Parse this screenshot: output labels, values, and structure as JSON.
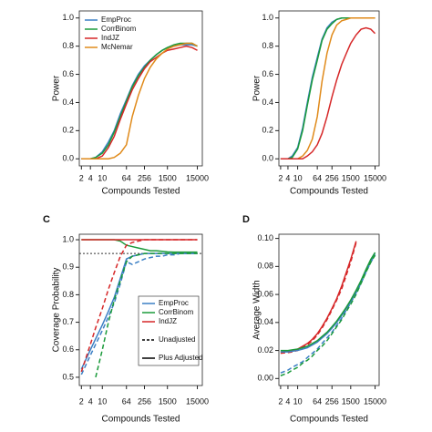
{
  "chart_data": [
    {
      "type": "line",
      "ylabel": "Power",
      "xlabel": "Compounds Tested",
      "log_x": true,
      "xlim": [
        1.7,
        22000
      ],
      "ylim": [
        -0.05,
        1.05
      ],
      "xticks": [
        2,
        4,
        10,
        64,
        256,
        1500,
        15000
      ],
      "yticks": [
        {
          "value": 0,
          "label": "0.0"
        },
        0.2,
        0.4,
        0.6,
        0.8,
        {
          "value": 1,
          "label": "1.0"
        }
      ],
      "x": [
        2,
        4,
        6,
        10,
        16,
        25,
        40,
        64,
        100,
        160,
        256,
        400,
        640,
        1000,
        1500,
        2500,
        4000,
        6400,
        10000,
        15000
      ],
      "legend_position": "top-left",
      "series": [
        {
          "name": "EmpProc",
          "color": "#3b7fc4",
          "values": [
            0,
            0,
            0.01,
            0.05,
            0.12,
            0.2,
            0.32,
            0.42,
            0.52,
            0.6,
            0.66,
            0.7,
            0.74,
            0.77,
            0.79,
            0.8,
            0.81,
            0.81,
            0.81,
            0.8
          ]
        },
        {
          "name": "CorrBinom",
          "color": "#1a9a3a",
          "values": [
            0,
            0,
            0.01,
            0.04,
            0.1,
            0.19,
            0.3,
            0.41,
            0.51,
            0.59,
            0.65,
            0.7,
            0.74,
            0.77,
            0.79,
            0.81,
            0.82,
            0.82,
            0.82,
            0.8
          ]
        },
        {
          "name": "IndJZ",
          "color": "#d62728",
          "values": [
            0,
            0,
            0,
            0.02,
            0.08,
            0.16,
            0.28,
            0.39,
            0.49,
            0.57,
            0.64,
            0.69,
            0.72,
            0.75,
            0.77,
            0.78,
            0.79,
            0.8,
            0.79,
            0.77
          ]
        },
        {
          "name": "McNemar",
          "color": "#e08a1a",
          "values": [
            0,
            0,
            0,
            0,
            0,
            0.01,
            0.04,
            0.1,
            0.3,
            0.45,
            0.57,
            0.65,
            0.71,
            0.75,
            0.78,
            0.8,
            0.81,
            0.82,
            0.82,
            0.8
          ]
        }
      ]
    },
    {
      "type": "line",
      "ylabel": "Power",
      "xlabel": "Compounds Tested",
      "log_x": true,
      "xlim": [
        1.7,
        22000
      ],
      "ylim": [
        -0.05,
        1.05
      ],
      "xticks": [
        2,
        4,
        10,
        64,
        256,
        1500,
        15000
      ],
      "yticks": [
        {
          "value": 0,
          "label": "0.0"
        },
        0.2,
        0.4,
        0.6,
        0.8,
        {
          "value": 1,
          "label": "1.0"
        }
      ],
      "x": [
        2,
        4,
        6,
        10,
        16,
        25,
        40,
        64,
        100,
        160,
        256,
        400,
        640,
        1000,
        1500,
        2500,
        4000,
        6400,
        10000,
        15000
      ],
      "series": [
        {
          "color": "#3b7fc4",
          "values": [
            0,
            0,
            0.02,
            0.08,
            0.22,
            0.4,
            0.58,
            0.72,
            0.85,
            0.93,
            0.97,
            0.99,
            1,
            1,
            1,
            1,
            1,
            1,
            1,
            1
          ]
        },
        {
          "color": "#1a9a3a",
          "values": [
            0,
            0,
            0.01,
            0.07,
            0.2,
            0.38,
            0.56,
            0.7,
            0.84,
            0.92,
            0.96,
            0.99,
            1,
            1,
            1,
            1,
            1,
            1,
            1,
            1
          ]
        },
        {
          "color": "#e08a1a",
          "values": [
            0,
            0,
            0,
            0,
            0.02,
            0.06,
            0.14,
            0.3,
            0.55,
            0.75,
            0.88,
            0.95,
            0.98,
            0.99,
            1,
            1,
            1,
            1,
            1,
            1
          ]
        },
        {
          "color": "#d62728",
          "values": [
            0,
            0,
            0,
            0,
            0,
            0.02,
            0.05,
            0.1,
            0.18,
            0.3,
            0.44,
            0.56,
            0.67,
            0.75,
            0.82,
            0.88,
            0.92,
            0.93,
            0.92,
            0.89
          ]
        }
      ]
    },
    {
      "type": "line",
      "panel": "C",
      "ylabel": "Coverage Probability",
      "xlabel": "Compounds Tested",
      "log_x": true,
      "xlim": [
        1.7,
        22000
      ],
      "ylim": [
        0.47,
        1.02
      ],
      "xticks": [
        2,
        4,
        10,
        64,
        256,
        1500,
        15000
      ],
      "yticks": [
        0.5,
        0.6,
        0.7,
        0.8,
        0.9,
        {
          "value": 1,
          "label": "1.0"
        }
      ],
      "hline": 0.95,
      "x": [
        2,
        4,
        6,
        10,
        16,
        25,
        40,
        64,
        100,
        160,
        256,
        400,
        640,
        1000,
        1500,
        2500,
        4000,
        6400,
        10000,
        15000
      ],
      "legend_position": "bottom-right",
      "legend": [
        {
          "label": "EmpProc",
          "color": "#3b7fc4"
        },
        {
          "label": "CorrBinom",
          "color": "#1a9a3a"
        },
        {
          "label": "IndJZ",
          "color": "#d62728"
        },
        {
          "label": "Unadjusted",
          "color": "#000000",
          "dashed": true
        },
        {
          "label": "Plus Adjusted",
          "color": "#000000"
        }
      ],
      "series": [
        {
          "color": "#3b7fc4",
          "values": [
            0.53,
            0.6,
            0.64,
            0.69,
            0.74,
            0.79,
            0.86,
            0.93,
            0.94,
            0.945,
            0.95,
            0.95,
            0.95,
            0.95,
            0.95,
            0.95,
            0.95,
            0.95,
            0.95,
            0.95
          ]
        },
        {
          "color": "#3b7fc4",
          "dashed": true,
          "values": [
            0.51,
            0.58,
            0.62,
            0.67,
            0.72,
            0.77,
            0.84,
            0.92,
            0.91,
            0.92,
            0.93,
            0.935,
            0.94,
            0.94,
            0.945,
            0.945,
            0.95,
            0.95,
            0.95,
            0.95
          ]
        },
        {
          "color": "#1a9a3a",
          "values": [
            1,
            1,
            1,
            1,
            1,
            1,
            0.995,
            0.98,
            0.975,
            0.97,
            0.965,
            0.96,
            0.96,
            0.958,
            0.956,
            0.955,
            0.955,
            0.955,
            0.955,
            0.955
          ]
        },
        {
          "color": "#1a9a3a",
          "dashed": true,
          "values": [
            null,
            null,
            0.5,
            0.6,
            0.7,
            0.78,
            0.85,
            0.92,
            0.94,
            0.945,
            0.95,
            0.95,
            0.95,
            0.95,
            0.95,
            0.95,
            0.95,
            0.95,
            0.95,
            0.95
          ]
        },
        {
          "color": "#d62728",
          "values": [
            1,
            1,
            1,
            1,
            1,
            1,
            1,
            1,
            1,
            1,
            1,
            1,
            1,
            1,
            1,
            1,
            1,
            1,
            1,
            1
          ]
        },
        {
          "color": "#d62728",
          "dashed": true,
          "values": [
            0.52,
            0.62,
            0.68,
            0.75,
            0.82,
            0.88,
            0.94,
            0.98,
            0.99,
            0.995,
            1,
            1,
            1,
            1,
            1,
            1,
            1,
            1,
            1,
            1
          ]
        }
      ]
    },
    {
      "type": "line",
      "panel": "D",
      "ylabel": "Average Width",
      "xlabel": "Compounds Tested",
      "log_x": true,
      "xlim": [
        1.7,
        22000
      ],
      "ylim": [
        -0.005,
        0.103
      ],
      "xticks": [
        2,
        4,
        10,
        64,
        256,
        1500,
        15000
      ],
      "yticks": [
        {
          "value": 0,
          "label": "0.00"
        },
        0.02,
        0.04,
        0.06,
        0.08,
        {
          "value": 0.1,
          "label": "0.10"
        }
      ],
      "x": [
        2,
        4,
        6,
        10,
        16,
        25,
        40,
        64,
        100,
        160,
        256,
        400,
        640,
        1000,
        1500,
        2500,
        4000,
        6400,
        10000,
        15000
      ],
      "series": [
        {
          "color": "#d62728",
          "values": [
            0.019,
            0.0195,
            0.02,
            0.021,
            0.023,
            0.025,
            0.028,
            0.032,
            0.037,
            0.043,
            0.05,
            0.057,
            0.066,
            0.076,
            0.085,
            0.098,
            null,
            null,
            null,
            null
          ]
        },
        {
          "color": "#d62728",
          "dashed": true,
          "values": [
            0.018,
            0.0185,
            0.019,
            0.02,
            0.022,
            0.024,
            0.027,
            0.031,
            0.036,
            0.042,
            0.049,
            0.056,
            0.064,
            0.074,
            0.083,
            0.097,
            null,
            null,
            null,
            null
          ]
        },
        {
          "color": "#3b7fc4",
          "values": [
            0.019,
            0.019,
            0.0195,
            0.02,
            0.021,
            0.022,
            0.024,
            0.026,
            0.029,
            0.032,
            0.036,
            0.04,
            0.045,
            0.05,
            0.055,
            0.062,
            0.069,
            0.077,
            0.084,
            0.089
          ]
        },
        {
          "color": "#1a9a3a",
          "values": [
            0.02,
            0.02,
            0.0205,
            0.021,
            0.022,
            0.023,
            0.025,
            0.027,
            0.03,
            0.033,
            0.037,
            0.041,
            0.046,
            0.051,
            0.056,
            0.063,
            0.07,
            0.078,
            0.085,
            0.09
          ]
        },
        {
          "color": "#3b7fc4",
          "dashed": true,
          "values": [
            0.004,
            0.006,
            0.008,
            0.01,
            0.012,
            0.015,
            0.018,
            0.021,
            0.025,
            0.029,
            0.033,
            0.038,
            0.043,
            0.049,
            0.054,
            0.061,
            0.068,
            0.076,
            0.083,
            0.088
          ]
        },
        {
          "color": "#1a9a3a",
          "dashed": true,
          "values": [
            0.002,
            0.004,
            0.006,
            0.008,
            0.011,
            0.013,
            0.016,
            0.02,
            0.023,
            0.027,
            0.032,
            0.037,
            0.042,
            0.048,
            0.053,
            0.06,
            0.068,
            0.076,
            0.083,
            0.088
          ]
        }
      ]
    }
  ]
}
